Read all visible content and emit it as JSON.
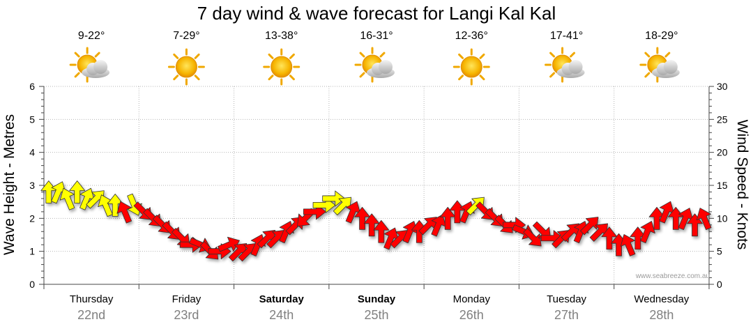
{
  "chart_data": {
    "type": "line",
    "title": "7 day wind & wave forecast for Langi Kal Kal",
    "ylabel_left": "Wave Height - Metres",
    "ylabel_right": "Wind Speed - Knots",
    "ylim_left": [
      0,
      6
    ],
    "ylim_right": [
      0,
      30
    ],
    "yticks_left": [
      "0",
      "1",
      "2",
      "3",
      "4",
      "5",
      "6"
    ],
    "yticks_right": [
      "0",
      "5",
      "10",
      "15",
      "20",
      "25",
      "30"
    ],
    "grid": true,
    "watermark": "www.seabreeze.com.au",
    "days": [
      {
        "name": "Thursday",
        "date": "22nd",
        "temp": "9-22°",
        "weather": "partly-cloudy",
        "bold": false
      },
      {
        "name": "Friday",
        "date": "23rd",
        "temp": "7-29°",
        "weather": "sunny",
        "bold": false
      },
      {
        "name": "Saturday",
        "date": "24th",
        "temp": "13-38°",
        "weather": "sunny",
        "bold": true
      },
      {
        "name": "Sunday",
        "date": "25th",
        "temp": "16-31°",
        "weather": "partly-cloudy",
        "bold": true
      },
      {
        "name": "Monday",
        "date": "26th",
        "temp": "12-36°",
        "weather": "sunny",
        "bold": false
      },
      {
        "name": "Tuesday",
        "date": "27th",
        "temp": "17-41°",
        "weather": "partly-cloudy",
        "bold": false
      },
      {
        "name": "Wednesday",
        "date": "28th",
        "temp": "18-29°",
        "weather": "partly-cloudy",
        "bold": false
      }
    ],
    "series": [
      {
        "unit": "knots",
        "colors": {
          "light": "#ffff00",
          "strong": "#ff0000",
          "outline": "#333333"
        },
        "x_day": [
          0.0,
          0.1,
          0.2,
          0.3,
          0.4,
          0.5,
          0.6,
          0.7,
          0.8,
          0.9,
          1.0,
          1.1,
          1.2,
          1.3,
          1.4,
          1.5,
          1.6,
          1.7,
          1.8,
          1.9,
          2.0,
          2.1,
          2.2,
          2.3,
          2.4,
          2.5,
          2.6,
          2.7,
          2.8,
          2.9,
          3.0,
          3.1,
          3.2,
          3.3,
          3.4,
          3.5,
          3.6,
          3.7,
          3.8,
          3.9,
          4.0,
          4.1,
          4.2,
          4.3,
          4.4,
          4.5,
          4.6,
          4.7,
          4.8,
          4.9,
          5.0,
          5.1,
          5.2,
          5.3,
          5.4,
          5.5,
          5.6,
          5.7,
          5.8,
          5.9,
          6.0,
          6.1,
          6.2,
          6.3,
          6.4,
          6.5,
          6.6,
          6.7,
          6.8,
          6.9
        ],
        "speed": [
          14,
          14,
          13,
          14,
          13,
          13,
          12,
          12,
          11,
          12,
          11,
          10,
          9,
          8,
          7,
          6,
          6,
          5,
          5,
          6,
          5,
          5,
          6,
          7,
          7,
          8,
          9,
          10,
          11,
          12,
          13,
          12,
          11,
          10,
          9,
          8,
          7,
          7,
          8,
          8,
          9,
          9,
          10,
          11,
          11,
          12,
          11,
          10,
          9,
          9,
          8,
          7,
          8,
          7,
          7,
          8,
          8,
          9,
          8,
          7,
          6,
          6,
          7,
          8,
          10,
          11,
          10,
          10,
          9,
          10
        ],
        "direction": [
          "S",
          "SSW",
          "SSE",
          "S",
          "SSW",
          "SW",
          "SSE",
          "S",
          "SSE",
          "NNW",
          "NW",
          "NW",
          "NW",
          "NW",
          "NW",
          "W",
          "WNW",
          "NW",
          "W",
          "WSW",
          "SW",
          "SW",
          "SSW",
          "SW",
          "SW",
          "SSW",
          "SW",
          "NE",
          "W",
          "W",
          "W",
          "SW",
          "SSW",
          "S",
          "S",
          "S",
          "SSW",
          "SW",
          "SSW",
          "S",
          "SW",
          "SSW",
          "S",
          "S",
          "SSW",
          "SW",
          "NW",
          "NW",
          "NW",
          "W",
          "WNW",
          "NW",
          "NW",
          "W",
          "SW",
          "SW",
          "SSW",
          "SW",
          "SW",
          "S",
          "S",
          "SSE",
          "S",
          "SSW",
          "S",
          "SSW",
          "S",
          "SSW",
          "S",
          "SSE"
        ]
      }
    ]
  }
}
